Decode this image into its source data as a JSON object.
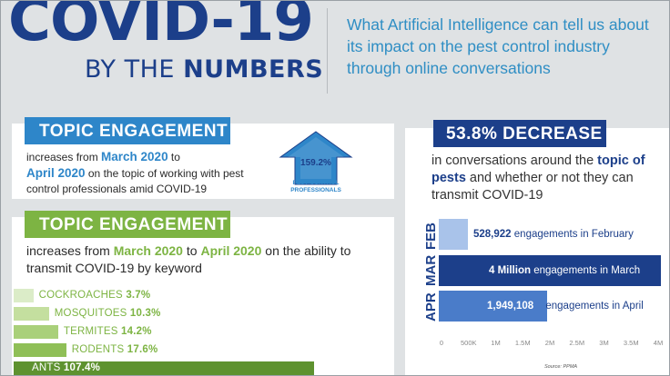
{
  "header": {
    "title": "COVID-19",
    "subtitle_prefix": "BY THE",
    "subtitle_bold": "NUMBERS",
    "tagline": "What Artificial Intelligence can tell us about its impact on the pest control industry through online conversations"
  },
  "engagement_card": {
    "tag": "TOPIC ENGAGEMENT",
    "text_1": "increases from ",
    "month_from": "March 2020",
    "text_2": " to",
    "month_to": "April 2020",
    "text_3": " on the topic of working with pest control professionals amid COVID-19",
    "arrow_value": "159.2%",
    "arrow_caption": "PEST CONTROL PROFESSIONALS",
    "colors": {
      "accent": "#2e86c9",
      "arrow": "#2e86c9",
      "arrow_border": "#1c3f8a"
    }
  },
  "keyword_card": {
    "tag": "TOPIC ENGAGEMENT",
    "text_1": "increases from ",
    "month_from": "March 2020",
    "text_2": " to ",
    "month_to": "April 2020",
    "text_3": " on the ability to transmit COVID-19 by keyword",
    "keywords": [
      {
        "name": "COCKROACHES",
        "value": "3.7%",
        "pct": 3.7,
        "color": "#dbecc8"
      },
      {
        "name": "MOSQUITOES",
        "value": "10.3%",
        "pct": 10.3,
        "color": "#c4df9f"
      },
      {
        "name": "TERMITES",
        "value": "14.2%",
        "pct": 14.2,
        "color": "#a9d07a"
      },
      {
        "name": "RODENTS",
        "value": "17.6%",
        "pct": 17.6,
        "color": "#8fbf57"
      },
      {
        "name": "ANTS",
        "value": "107.4%",
        "pct": 107.4,
        "color": "#5e922f"
      }
    ]
  },
  "decrease_card": {
    "tag": "53.8% DECREASE",
    "text_1": "in conversations around the ",
    "topic_bold": "topic of pests",
    "text_2": " and whether or not they can transmit COVID-19",
    "source": "Source: PPMA"
  },
  "chart_data": {
    "type": "bar",
    "orientation": "horizontal",
    "categories": [
      "FEB",
      "MAR",
      "APR"
    ],
    "values": [
      528922,
      4000000,
      1949108
    ],
    "value_labels": [
      "528,922",
      "4 Million",
      "1,949,108"
    ],
    "label_suffixes": [
      " engagements in February",
      " engagements in March",
      " engagements in April"
    ],
    "bar_colors": [
      "#a9c3ea",
      "#1c3f8a",
      "#4a7cc9"
    ],
    "xlim": [
      0,
      4000000
    ],
    "xticks": [
      "0",
      "500K",
      "1M",
      "1.5M",
      "2M",
      "2.5M",
      "3M",
      "3.5M",
      "4M"
    ]
  }
}
